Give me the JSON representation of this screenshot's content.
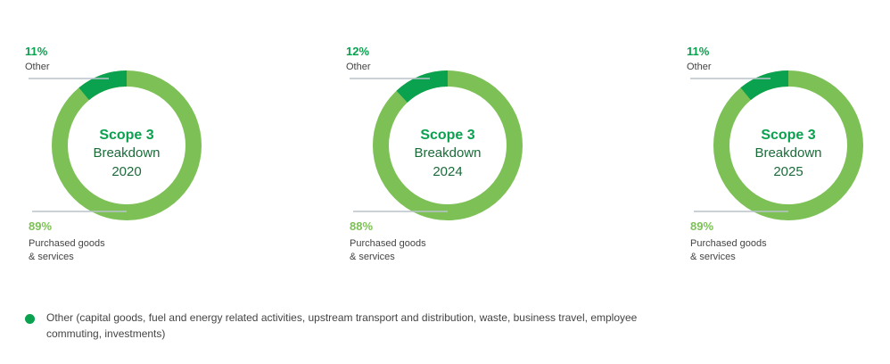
{
  "chart_data": [
    {
      "type": "pie",
      "center_title": "Scope 3",
      "center_subtitle": "Breakdown",
      "center_year": "2020",
      "slices": [
        {
          "label": "Other",
          "value": 11,
          "value_label": "11%",
          "color": "#0aa14f"
        },
        {
          "label": "Purchased goods\n& services",
          "label_lines": [
            "Purchased goods",
            "& services"
          ],
          "value": 89,
          "value_label": "89%",
          "color": "#7dc056"
        }
      ]
    },
    {
      "type": "pie",
      "center_title": "Scope 3",
      "center_subtitle": "Breakdown",
      "center_year": "2024",
      "slices": [
        {
          "label": "Other",
          "value": 12,
          "value_label": "12%",
          "color": "#0aa14f"
        },
        {
          "label": "Purchased goods\n& services",
          "label_lines": [
            "Purchased goods",
            "& services"
          ],
          "value": 88,
          "value_label": "88%",
          "color": "#7dc056"
        }
      ]
    },
    {
      "type": "pie",
      "center_title": "Scope 3",
      "center_subtitle": "Breakdown",
      "center_year": "2025",
      "slices": [
        {
          "label": "Other",
          "value": 11,
          "value_label": "11%",
          "color": "#0aa14f"
        },
        {
          "label": "Purchased goods\n& services",
          "label_lines": [
            "Purchased goods",
            "& services"
          ],
          "value": 89,
          "value_label": "89%",
          "color": "#7dc056"
        }
      ]
    }
  ],
  "legend": {
    "color": "#0aa14f",
    "text": "Other (capital goods, fuel and energy related activities, upstream transport and distribution, waste, business travel, employee commuting, investments)"
  },
  "colors": {
    "title_green": "#0aa14f",
    "center_text": "#1b6b3a",
    "leader_line": "#b8c4cc"
  }
}
